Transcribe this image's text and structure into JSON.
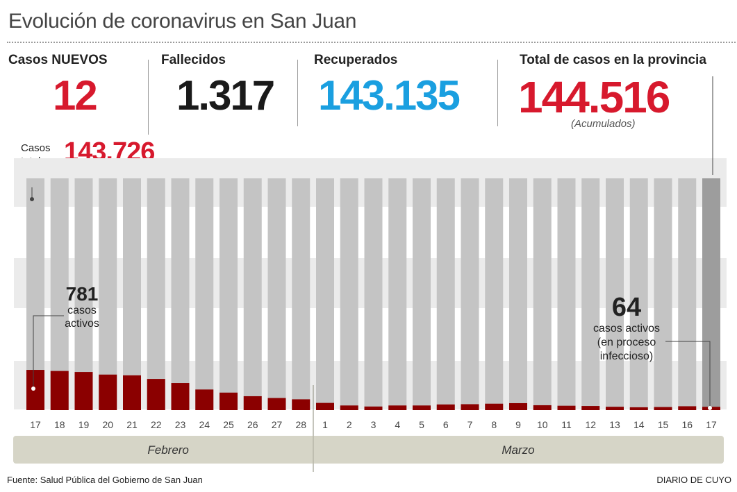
{
  "title": "Evolución de coronavirus en San Juan",
  "stats": {
    "nuevos": {
      "label": "Casos NUEVOS",
      "value": "12",
      "color": "#d7192d"
    },
    "fallecidos": {
      "label": "Fallecidos",
      "value": "1.317",
      "color": "#1a1a1a"
    },
    "recuperados": {
      "label": "Recuperados",
      "value": "143.135",
      "color": "#1a9fe0"
    },
    "total": {
      "label": "Total de casos en la provincia",
      "value": "144.516",
      "note": "(Acumulados)",
      "color": "#d7192d"
    }
  },
  "casos_totales": {
    "label_line1": "Casos",
    "label_line2": "totales",
    "value": "143.726"
  },
  "annotations": {
    "start": {
      "value": "781",
      "line1": "casos",
      "line2": "activos"
    },
    "end": {
      "value": "64",
      "line1": "casos activos",
      "line2": "(en proceso",
      "line3": "infeccioso)"
    }
  },
  "footer": {
    "source": "Fuente: Salud Pública del Gobierno de San Juan",
    "brand": "DIARIO DE CUYO"
  },
  "chart_data": {
    "type": "bar",
    "categories": [
      "17",
      "18",
      "19",
      "20",
      "21",
      "22",
      "23",
      "24",
      "25",
      "26",
      "27",
      "28",
      "1",
      "2",
      "3",
      "4",
      "5",
      "6",
      "7",
      "8",
      "9",
      "10",
      "11",
      "12",
      "13",
      "14",
      "15",
      "16",
      "17"
    ],
    "series": [
      {
        "name": "casos activos",
        "values": [
          781,
          760,
          740,
          690,
          675,
          605,
          525,
          400,
          340,
          270,
          235,
          210,
          140,
          90,
          70,
          90,
          90,
          110,
          115,
          125,
          135,
          95,
          85,
          80,
          65,
          55,
          60,
          75,
          64
        ],
        "color": "#8b0000"
      }
    ],
    "totals_color": "#c4c4c4",
    "last_total_color": "#9d9d9d",
    "months": [
      {
        "label": "Febrero",
        "from": 0,
        "to": 11
      },
      {
        "label": "Marzo",
        "from": 12,
        "to": 28
      }
    ],
    "ylim": [
      0,
      4500
    ]
  }
}
